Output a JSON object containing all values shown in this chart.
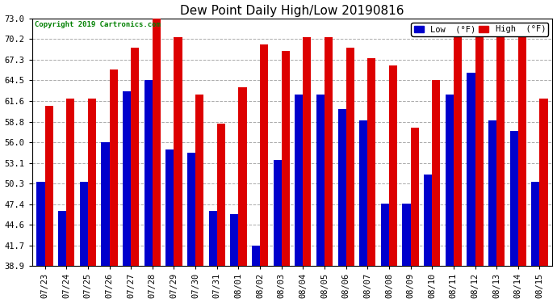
{
  "title": "Dew Point Daily High/Low 20190816",
  "copyright": "Copyright 2019 Cartronics.com",
  "categories": [
    "07/23",
    "07/24",
    "07/25",
    "07/26",
    "07/27",
    "07/28",
    "07/29",
    "07/30",
    "07/31",
    "08/01",
    "08/02",
    "08/03",
    "08/04",
    "08/05",
    "08/06",
    "08/07",
    "08/08",
    "08/09",
    "08/10",
    "08/11",
    "08/12",
    "08/13",
    "08/14",
    "08/15"
  ],
  "high": [
    61.0,
    62.0,
    62.0,
    66.0,
    69.0,
    73.5,
    70.5,
    62.5,
    58.5,
    63.5,
    69.5,
    68.5,
    70.5,
    70.5,
    69.0,
    67.5,
    66.5,
    58.0,
    64.5,
    70.5,
    71.0,
    70.5,
    70.5,
    62.0
  ],
  "low": [
    50.5,
    46.5,
    50.5,
    56.0,
    63.0,
    64.5,
    55.0,
    54.5,
    46.5,
    46.0,
    41.7,
    53.5,
    62.5,
    62.5,
    60.5,
    59.0,
    47.5,
    47.5,
    51.5,
    62.5,
    65.5,
    59.0,
    57.5,
    50.5
  ],
  "ylim_min": 38.9,
  "ylim_max": 73.0,
  "yticks": [
    38.9,
    41.7,
    44.6,
    47.4,
    50.3,
    53.1,
    56.0,
    58.8,
    61.6,
    64.5,
    67.3,
    70.2,
    73.0
  ],
  "bar_width": 0.38,
  "low_color": "#0000cc",
  "high_color": "#dd0000",
  "bg_color": "#ffffff",
  "grid_color": "#aaaaaa",
  "title_fontsize": 11,
  "tick_fontsize": 7.5,
  "legend_low_label": "Low  (°F)",
  "legend_high_label": "High  (°F)"
}
